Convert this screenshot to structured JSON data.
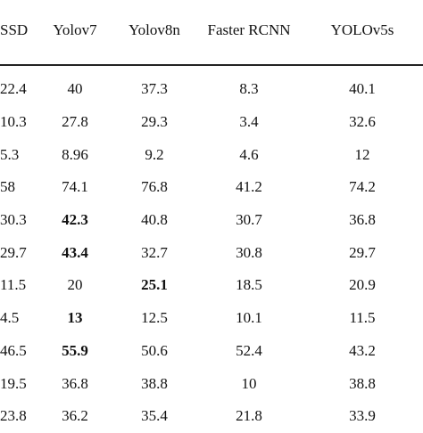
{
  "table": {
    "columns": [
      "SSD",
      "Yolov7",
      "Yolov8n",
      "Faster RCNN",
      "YOLOv5s"
    ],
    "rows": [
      [
        {
          "v": "22.4"
        },
        {
          "v": "40"
        },
        {
          "v": "37.3"
        },
        {
          "v": "8.3"
        },
        {
          "v": "40.1"
        }
      ],
      [
        {
          "v": "10.3"
        },
        {
          "v": "27.8"
        },
        {
          "v": "29.3"
        },
        {
          "v": "3.4"
        },
        {
          "v": "32.6"
        }
      ],
      [
        {
          "v": "5.3"
        },
        {
          "v": "8.96"
        },
        {
          "v": "9.2"
        },
        {
          "v": "4.6"
        },
        {
          "v": "12"
        }
      ],
      [
        {
          "v": "58"
        },
        {
          "v": "74.1"
        },
        {
          "v": "76.8"
        },
        {
          "v": "41.2"
        },
        {
          "v": "74.2"
        }
      ],
      [
        {
          "v": "30.3"
        },
        {
          "v": "42.3",
          "b": true
        },
        {
          "v": "40.8"
        },
        {
          "v": "30.7"
        },
        {
          "v": "36.8"
        }
      ],
      [
        {
          "v": "29.7"
        },
        {
          "v": "43.4",
          "b": true
        },
        {
          "v": "32.7"
        },
        {
          "v": "30.8"
        },
        {
          "v": "29.7"
        }
      ],
      [
        {
          "v": "11.5"
        },
        {
          "v": "20"
        },
        {
          "v": "25.1",
          "b": true
        },
        {
          "v": "18.5"
        },
        {
          "v": "20.9"
        }
      ],
      [
        {
          "v": "4.5"
        },
        {
          "v": "13",
          "b": true
        },
        {
          "v": "12.5"
        },
        {
          "v": "10.1"
        },
        {
          "v": "11.5"
        }
      ],
      [
        {
          "v": "46.5"
        },
        {
          "v": "55.9",
          "b": true
        },
        {
          "v": "50.6"
        },
        {
          "v": "52.4"
        },
        {
          "v": "43.2"
        }
      ],
      [
        {
          "v": "19.5"
        },
        {
          "v": "36.8"
        },
        {
          "v": "38.8"
        },
        {
          "v": "10"
        },
        {
          "v": "38.8"
        }
      ],
      [
        {
          "v": "23.8"
        },
        {
          "v": "36.2"
        },
        {
          "v": "35.4"
        },
        {
          "v": "21.8"
        },
        {
          "v": "33.9"
        }
      ]
    ]
  }
}
